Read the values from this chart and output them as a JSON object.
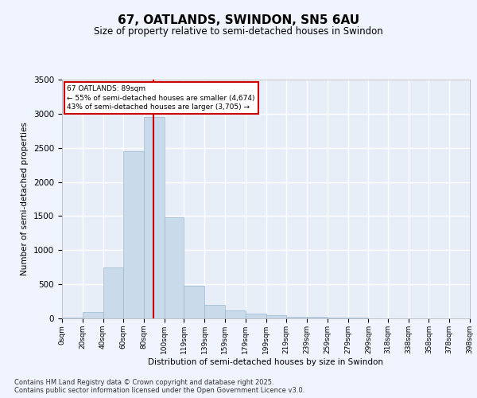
{
  "title": "67, OATLANDS, SWINDON, SN5 6AU",
  "subtitle": "Size of property relative to semi-detached houses in Swindon",
  "xlabel": "Distribution of semi-detached houses by size in Swindon",
  "ylabel": "Number of semi-detached properties",
  "property_size": 89,
  "property_label": "67 OATLANDS: 89sqm",
  "pct_smaller": 55,
  "pct_larger": 43,
  "n_smaller": 4674,
  "n_larger": 3705,
  "bar_color": "#c9daea",
  "bar_edge_color": "#9ab8cf",
  "vline_color": "#cc0000",
  "annotation_box_color": "#cc0000",
  "background_color": "#f0f4ff",
  "plot_bg_color": "#e8eef8",
  "grid_color": "#ffffff",
  "bins": [
    0,
    20,
    40,
    60,
    80,
    100,
    119,
    139,
    159,
    179,
    199,
    219,
    239,
    259,
    279,
    299,
    318,
    338,
    358,
    378,
    398
  ],
  "bin_labels": [
    "0sqm",
    "20sqm",
    "40sqm",
    "60sqm",
    "80sqm",
    "100sqm",
    "119sqm",
    "139sqm",
    "159sqm",
    "179sqm",
    "199sqm",
    "219sqm",
    "239sqm",
    "259sqm",
    "279sqm",
    "299sqm",
    "318sqm",
    "338sqm",
    "358sqm",
    "378sqm",
    "398sqm"
  ],
  "counts": [
    15,
    90,
    750,
    2450,
    2950,
    1480,
    480,
    195,
    115,
    65,
    45,
    25,
    18,
    12,
    8,
    4,
    2,
    1,
    1,
    0
  ],
  "ylim": [
    0,
    3500
  ],
  "yticks": [
    0,
    500,
    1000,
    1500,
    2000,
    2500,
    3000,
    3500
  ],
  "footer": "Contains HM Land Registry data © Crown copyright and database right 2025.\nContains public sector information licensed under the Open Government Licence v3.0."
}
